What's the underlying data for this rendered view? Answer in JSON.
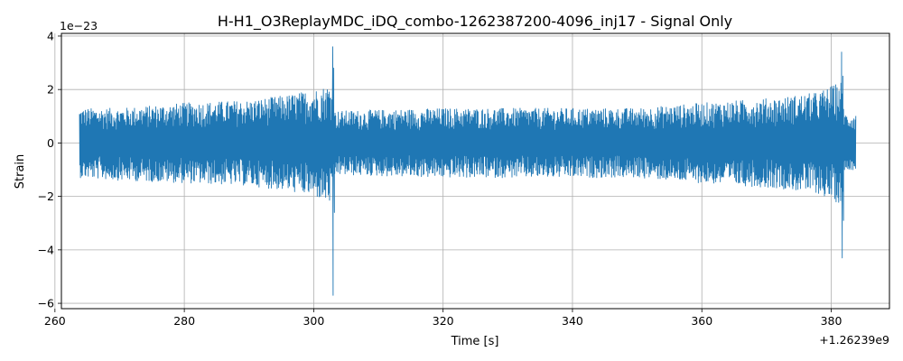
{
  "chart_data": {
    "type": "line",
    "title": "H-H1_O3ReplayMDC_iDQ_combo-1262387200-4096_inj17 - Signal Only",
    "xlabel": "Time [s]",
    "ylabel": "Strain",
    "x_offset_label": "+1.26239e9",
    "y_scale_label": "1e−23",
    "xlim": [
      261,
      389
    ],
    "ylim": [
      -6.2,
      4.1
    ],
    "x_ticks": [
      260,
      280,
      300,
      320,
      340,
      360,
      380
    ],
    "x_tick_labels": [
      "260",
      "280",
      "300",
      "320",
      "340",
      "360",
      "380"
    ],
    "y_ticks": [
      -6,
      -4,
      -2,
      0,
      2,
      4
    ],
    "y_tick_labels": [
      "−6",
      "−4",
      "−2",
      "0",
      "2",
      "4"
    ],
    "grid": true,
    "series": [
      {
        "color": "#1f77b4",
        "x_range": [
          263.8,
          383.8
        ],
        "envelope": [
          {
            "x": 263.8,
            "hi": 1.3,
            "lo": -1.3
          },
          {
            "x": 270,
            "hi": 1.3,
            "lo": -1.4
          },
          {
            "x": 280,
            "hi": 1.5,
            "lo": -1.5
          },
          {
            "x": 290,
            "hi": 1.6,
            "lo": -1.6
          },
          {
            "x": 296,
            "hi": 1.8,
            "lo": -1.8
          },
          {
            "x": 300,
            "hi": 2.0,
            "lo": -2.0
          },
          {
            "x": 302.8,
            "hi": 2.2,
            "lo": -2.3
          },
          {
            "x": 303.3,
            "hi": 1.2,
            "lo": -1.2
          },
          {
            "x": 320,
            "hi": 1.3,
            "lo": -1.3
          },
          {
            "x": 340,
            "hi": 1.3,
            "lo": -1.3
          },
          {
            "x": 350,
            "hi": 1.3,
            "lo": -1.3
          },
          {
            "x": 360,
            "hi": 1.5,
            "lo": -1.5
          },
          {
            "x": 372,
            "hi": 1.7,
            "lo": -1.7
          },
          {
            "x": 378,
            "hi": 1.9,
            "lo": -1.9
          },
          {
            "x": 381.5,
            "hi": 2.3,
            "lo": -2.3
          },
          {
            "x": 382.2,
            "hi": 1.1,
            "lo": -1.0
          },
          {
            "x": 383.8,
            "hi": 1.1,
            "lo": -1.0
          }
        ],
        "spikes": [
          {
            "x": 302.95,
            "y": 3.6
          },
          {
            "x": 303.0,
            "y": -5.7
          },
          {
            "x": 303.1,
            "y": 2.8
          },
          {
            "x": 303.2,
            "y": -2.6
          },
          {
            "x": 381.6,
            "y": 3.4
          },
          {
            "x": 381.7,
            "y": -4.3
          },
          {
            "x": 381.8,
            "y": 2.5
          },
          {
            "x": 381.9,
            "y": -2.9
          }
        ]
      }
    ]
  }
}
